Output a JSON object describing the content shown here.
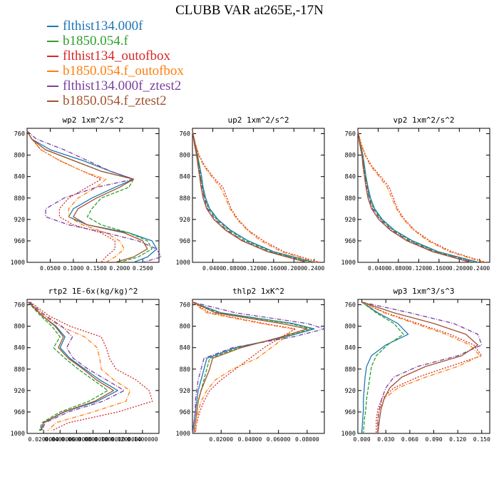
{
  "title": "CLUBB VAR at265E,-17N",
  "series": [
    {
      "name": "flthist134.000f",
      "color": "#1f77b4",
      "dash": ""
    },
    {
      "name": "b1850.054.f",
      "color": "#2ca02c",
      "dash": "5,2"
    },
    {
      "name": "flthist134_outofbox",
      "color": "#d62728",
      "dash": "2,2"
    },
    {
      "name": "b1850.054.f_outofbox",
      "color": "#ff7f0e",
      "dash": "6,2,1,2"
    },
    {
      "name": "flthist134.000f_ztest2",
      "color": "#7b3fa0",
      "dash": "6,2,1,2"
    },
    {
      "name": "b1850.054.f_ztest2",
      "color": "#a0522d",
      "dash": ""
    }
  ],
  "chart_data": [
    {
      "type": "line",
      "title": "wp2  1xm^2/s^2",
      "ylim": [
        1000,
        750
      ],
      "yticks": [
        "760",
        "800",
        "840",
        "880",
        "920",
        "960",
        "1000"
      ],
      "xlim": [
        0,
        0.285
      ],
      "xticks": [
        {
          "v": 0.05,
          "t": "0.0500"
        },
        {
          "v": 0.1,
          "t": "0.1000"
        },
        {
          "v": 0.15,
          "t": "0.1500"
        },
        {
          "v": 0.2,
          "t": "0.2000"
        },
        {
          "v": 0.25,
          "t": "0.2500"
        }
      ],
      "levels": [
        755,
        770,
        790,
        810,
        830,
        845,
        860,
        880,
        900,
        915,
        930,
        945,
        960,
        975,
        990,
        1000
      ],
      "series": [
        [
          0.0,
          0.01,
          0.05,
          0.12,
          0.18,
          0.23,
          0.19,
          0.14,
          0.1,
          0.09,
          0.13,
          0.22,
          0.27,
          0.28,
          0.26,
          0.23
        ],
        [
          0.0,
          0.01,
          0.04,
          0.1,
          0.16,
          0.23,
          0.22,
          0.16,
          0.14,
          0.13,
          0.16,
          0.22,
          0.26,
          0.27,
          0.24,
          0.2
        ],
        [
          0.0,
          0.01,
          0.03,
          0.07,
          0.12,
          0.16,
          0.13,
          0.09,
          0.07,
          0.07,
          0.1,
          0.16,
          0.19,
          0.19,
          0.17,
          0.16
        ],
        [
          0.0,
          0.01,
          0.03,
          0.07,
          0.12,
          0.17,
          0.15,
          0.11,
          0.09,
          0.09,
          0.12,
          0.17,
          0.2,
          0.21,
          0.19,
          0.17
        ],
        [
          0.0,
          0.02,
          0.08,
          0.13,
          0.18,
          0.23,
          0.15,
          0.08,
          0.04,
          0.04,
          0.09,
          0.17,
          0.24,
          0.28,
          0.29,
          0.25
        ],
        [
          0.0,
          0.01,
          0.04,
          0.1,
          0.16,
          0.23,
          0.2,
          0.15,
          0.11,
          0.1,
          0.13,
          0.21,
          0.25,
          0.26,
          0.23,
          0.19
        ]
      ]
    },
    {
      "type": "line",
      "title": "up2  1xm^2/s^2",
      "ylim": [
        1000,
        750
      ],
      "yticks": [
        "760",
        "800",
        "840",
        "880",
        "920",
        "960",
        "1000"
      ],
      "xlim": [
        0,
        0.26
      ],
      "xticks": [
        {
          "v": 0.04,
          "t": "0.0400"
        },
        {
          "v": 0.08,
          "t": "0.0800"
        },
        {
          "v": 0.12,
          "t": "0.1200"
        },
        {
          "v": 0.16,
          "t": "0.1600"
        },
        {
          "v": 0.2,
          "t": "0.2000"
        },
        {
          "v": 0.24,
          "t": "0.2400"
        }
      ],
      "levels": [
        755,
        780,
        800,
        820,
        840,
        860,
        880,
        900,
        920,
        940,
        960,
        980,
        1000
      ],
      "series": [
        [
          0.0,
          0.005,
          0.01,
          0.014,
          0.018,
          0.021,
          0.026,
          0.034,
          0.05,
          0.075,
          0.11,
          0.16,
          0.24
        ],
        [
          0.0,
          0.005,
          0.01,
          0.013,
          0.016,
          0.02,
          0.024,
          0.032,
          0.048,
          0.072,
          0.105,
          0.155,
          0.235
        ],
        [
          0.0,
          0.006,
          0.013,
          0.024,
          0.04,
          0.06,
          0.068,
          0.076,
          0.09,
          0.11,
          0.14,
          0.18,
          0.25
        ],
        [
          0.0,
          0.006,
          0.012,
          0.022,
          0.038,
          0.055,
          0.065,
          0.074,
          0.088,
          0.108,
          0.135,
          0.175,
          0.245
        ],
        [
          0.0,
          0.005,
          0.009,
          0.012,
          0.015,
          0.019,
          0.023,
          0.03,
          0.045,
          0.068,
          0.1,
          0.15,
          0.23
        ],
        [
          0.0,
          0.004,
          0.008,
          0.011,
          0.014,
          0.017,
          0.021,
          0.028,
          0.042,
          0.065,
          0.098,
          0.148,
          0.225
        ]
      ]
    },
    {
      "type": "line",
      "title": "vp2  1xm^2/s^2",
      "ylim": [
        1000,
        750
      ],
      "yticks": [
        "760",
        "800",
        "840",
        "880",
        "920",
        "960",
        "1000"
      ],
      "xlim": [
        0,
        0.26
      ],
      "xticks": [
        {
          "v": 0.04,
          "t": "0.0400"
        },
        {
          "v": 0.08,
          "t": "0.0800"
        },
        {
          "v": 0.12,
          "t": "0.1200"
        },
        {
          "v": 0.16,
          "t": "0.1600"
        },
        {
          "v": 0.2,
          "t": "0.2000"
        },
        {
          "v": 0.24,
          "t": "0.2400"
        }
      ],
      "levels": [
        755,
        780,
        800,
        820,
        840,
        860,
        880,
        900,
        920,
        940,
        960,
        980,
        1000
      ],
      "series": [
        [
          0.0,
          0.005,
          0.01,
          0.013,
          0.016,
          0.02,
          0.025,
          0.033,
          0.048,
          0.072,
          0.108,
          0.158,
          0.238
        ],
        [
          0.0,
          0.005,
          0.009,
          0.012,
          0.015,
          0.019,
          0.023,
          0.031,
          0.046,
          0.07,
          0.104,
          0.154,
          0.232
        ],
        [
          0.0,
          0.007,
          0.015,
          0.027,
          0.045,
          0.062,
          0.07,
          0.078,
          0.092,
          0.112,
          0.142,
          0.185,
          0.252
        ],
        [
          0.0,
          0.006,
          0.014,
          0.025,
          0.042,
          0.058,
          0.067,
          0.076,
          0.09,
          0.11,
          0.138,
          0.18,
          0.248
        ],
        [
          0.0,
          0.004,
          0.008,
          0.011,
          0.014,
          0.018,
          0.022,
          0.029,
          0.044,
          0.067,
          0.1,
          0.15,
          0.228
        ],
        [
          0.0,
          0.004,
          0.008,
          0.01,
          0.013,
          0.016,
          0.02,
          0.027,
          0.041,
          0.064,
          0.097,
          0.147,
          0.222
        ]
      ]
    },
    {
      "type": "line",
      "title": "rtp2  1E-6x(kg/kg)^2",
      "ylim": [
        1000,
        750
      ],
      "yticks": [
        "760",
        "800",
        "840",
        "880",
        "920",
        "960",
        "1000"
      ],
      "xlim": [
        0.0,
        0.16
      ],
      "xticks": [
        {
          "v": 0.02,
          "t": "0.0200000"
        },
        {
          "v": 0.04,
          "t": "0.0400000"
        },
        {
          "v": 0.06,
          "t": "0.0600000"
        },
        {
          "v": 0.08,
          "t": "0.0800000"
        },
        {
          "v": 0.1,
          "t": "0.1000000"
        },
        {
          "v": 0.12,
          "t": "0.1200000"
        },
        {
          "v": 0.14,
          "t": "0.1400000"
        }
      ],
      "levels": [
        755,
        780,
        800,
        820,
        840,
        860,
        880,
        900,
        920,
        940,
        960,
        980,
        995
      ],
      "series": [
        [
          0.002,
          0.018,
          0.035,
          0.046,
          0.04,
          0.052,
          0.07,
          0.088,
          0.11,
          0.085,
          0.045,
          0.02,
          0.016
        ],
        [
          0.001,
          0.016,
          0.03,
          0.04,
          0.032,
          0.046,
          0.062,
          0.08,
          0.098,
          0.075,
          0.04,
          0.018,
          0.015
        ],
        [
          0.004,
          0.026,
          0.052,
          0.09,
          0.096,
          0.1,
          0.108,
          0.132,
          0.148,
          0.152,
          0.11,
          0.05,
          0.03
        ],
        [
          0.003,
          0.02,
          0.04,
          0.07,
          0.085,
          0.088,
          0.09,
          0.105,
          0.125,
          0.12,
          0.08,
          0.035,
          0.025
        ],
        [
          0.003,
          0.022,
          0.042,
          0.055,
          0.048,
          0.056,
          0.074,
          0.096,
          0.118,
          0.092,
          0.05,
          0.022,
          0.018
        ],
        [
          0.002,
          0.018,
          0.034,
          0.044,
          0.038,
          0.05,
          0.068,
          0.084,
          0.105,
          0.082,
          0.044,
          0.02,
          0.017
        ]
      ]
    },
    {
      "type": "line",
      "title": "thlp2  1xK^2",
      "ylim": [
        1000,
        750
      ],
      "yticks": [
        "760",
        "800",
        "840",
        "880",
        "920",
        "960",
        "1000"
      ],
      "xlim": [
        0,
        0.092
      ],
      "xticks": [
        {
          "v": 0.02,
          "t": "0.02000"
        },
        {
          "v": 0.04,
          "t": "0.04000"
        },
        {
          "v": 0.06,
          "t": "0.06000"
        },
        {
          "v": 0.08,
          "t": "0.08000"
        }
      ],
      "levels": [
        755,
        775,
        795,
        805,
        820,
        840,
        860,
        880,
        900,
        920,
        940,
        960,
        980,
        1000
      ],
      "series": [
        [
          0.0,
          0.02,
          0.07,
          0.085,
          0.065,
          0.03,
          0.01,
          0.008,
          0.006,
          0.004,
          0.003,
          0.002,
          0.001,
          0.0
        ],
        [
          0.0,
          0.018,
          0.068,
          0.083,
          0.064,
          0.032,
          0.012,
          0.01,
          0.008,
          0.006,
          0.004,
          0.003,
          0.002,
          0.001
        ],
        [
          0.0,
          0.012,
          0.05,
          0.072,
          0.062,
          0.05,
          0.04,
          0.03,
          0.02,
          0.012,
          0.008,
          0.005,
          0.003,
          0.002
        ],
        [
          0.0,
          0.01,
          0.048,
          0.07,
          0.065,
          0.055,
          0.045,
          0.028,
          0.016,
          0.01,
          0.006,
          0.004,
          0.003,
          0.002
        ],
        [
          0.0,
          0.03,
          0.08,
          0.092,
          0.07,
          0.028,
          0.008,
          0.006,
          0.004,
          0.003,
          0.002,
          0.002,
          0.001,
          0.0
        ],
        [
          0.0,
          0.016,
          0.062,
          0.08,
          0.062,
          0.034,
          0.014,
          0.012,
          0.009,
          0.006,
          0.004,
          0.003,
          0.002,
          0.001
        ]
      ]
    },
    {
      "type": "line",
      "title": "wp3  1xm^3/s^3",
      "ylim": [
        1000,
        750
      ],
      "yticks": [
        "760",
        "800",
        "840",
        "880",
        "920",
        "960",
        "1000"
      ],
      "xlim": [
        -0.005,
        0.16
      ],
      "xticks": [
        {
          "v": 0.0,
          "t": "0.000"
        },
        {
          "v": 0.03,
          "t": "0.030"
        },
        {
          "v": 0.06,
          "t": "0.060"
        },
        {
          "v": 0.09,
          "t": "0.090"
        },
        {
          "v": 0.12,
          "t": "0.120"
        },
        {
          "v": 0.15,
          "t": "0.150"
        }
      ],
      "levels": [
        755,
        775,
        795,
        815,
        835,
        855,
        875,
        895,
        915,
        935,
        955,
        975,
        1000
      ],
      "series": [
        [
          0.0,
          0.02,
          0.045,
          0.058,
          0.03,
          0.012,
          0.006,
          0.004,
          0.003,
          0.002,
          0.002,
          0.001,
          0.0
        ],
        [
          0.0,
          0.018,
          0.04,
          0.052,
          0.032,
          0.018,
          0.012,
          0.01,
          0.008,
          0.006,
          0.005,
          0.003,
          0.002
        ],
        [
          0.0,
          0.03,
          0.07,
          0.11,
          0.14,
          0.15,
          0.11,
          0.07,
          0.04,
          0.025,
          0.02,
          0.018,
          0.018
        ],
        [
          0.0,
          0.028,
          0.066,
          0.105,
          0.135,
          0.148,
          0.12,
          0.08,
          0.045,
          0.028,
          0.022,
          0.02,
          0.02
        ],
        [
          0.0,
          0.06,
          0.115,
          0.145,
          0.15,
          0.12,
          0.07,
          0.04,
          0.03,
          0.025,
          0.022,
          0.02,
          0.02
        ],
        [
          0.0,
          0.04,
          0.09,
          0.13,
          0.145,
          0.125,
          0.08,
          0.05,
          0.035,
          0.028,
          0.024,
          0.022,
          0.02
        ]
      ]
    }
  ]
}
